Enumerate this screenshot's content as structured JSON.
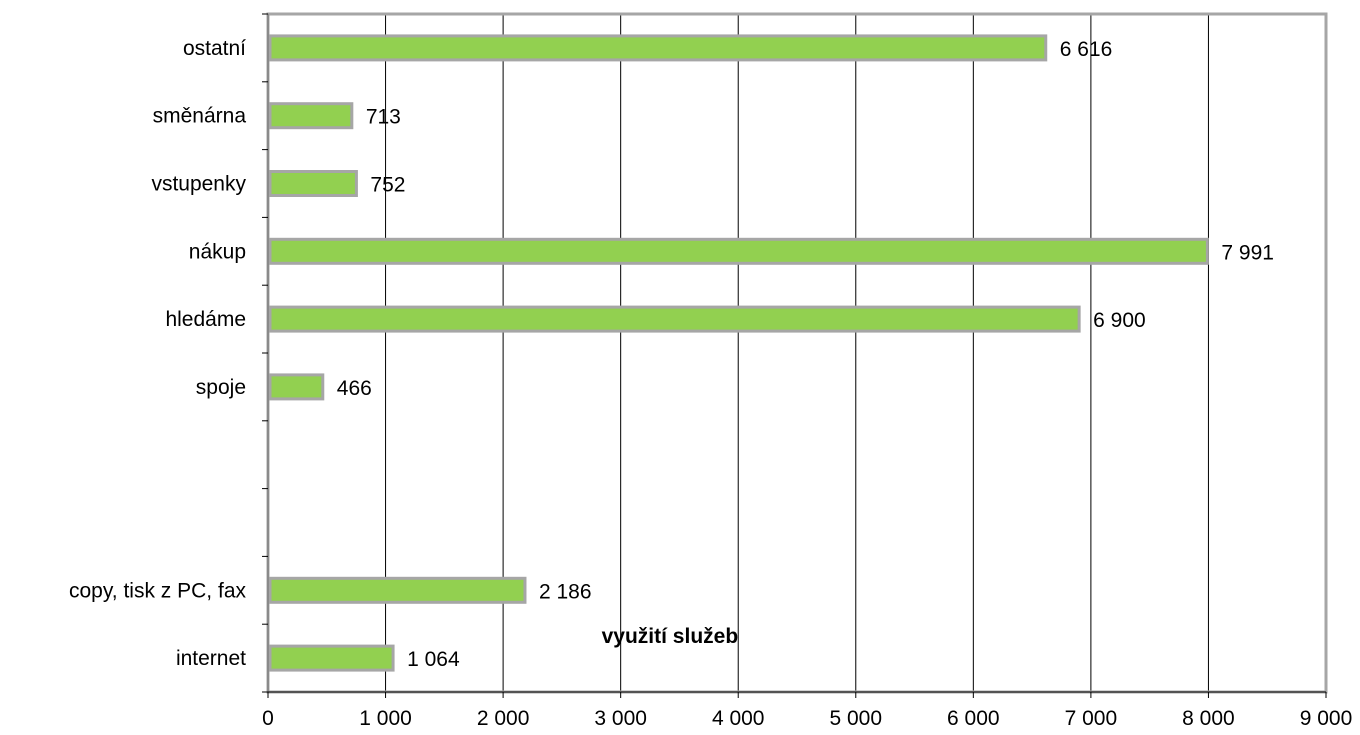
{
  "chart_data": {
    "type": "bar",
    "orientation": "horizontal",
    "title": "využití služeb",
    "categories": [
      "ostatní",
      "směnárna",
      "vstupenky",
      "nákup",
      "hledáme",
      "spoje",
      "",
      "",
      "copy, tisk z PC, fax",
      "internet"
    ],
    "values": [
      6616,
      713,
      752,
      7991,
      6900,
      466,
      null,
      null,
      2186,
      1064
    ],
    "data_labels": [
      "6 616",
      "713",
      "752",
      "7 991",
      "6 900",
      "466",
      "",
      "",
      "2 186",
      "1 064"
    ],
    "xlim": [
      0,
      9000
    ],
    "x_ticks": [
      0,
      1000,
      2000,
      3000,
      4000,
      5000,
      6000,
      7000,
      8000,
      9000
    ],
    "x_tick_labels": [
      "0",
      "1 000",
      "2 000",
      "3 000",
      "4 000",
      "5 000",
      "6 000",
      "7 000",
      "8 000",
      "9 000"
    ],
    "grid": "vertical",
    "legend": "none",
    "colors": {
      "bar_fill": "#92d050",
      "bar_border": "#a6a6a6",
      "frame": "#a6a6a6",
      "grid": "#000000"
    }
  }
}
